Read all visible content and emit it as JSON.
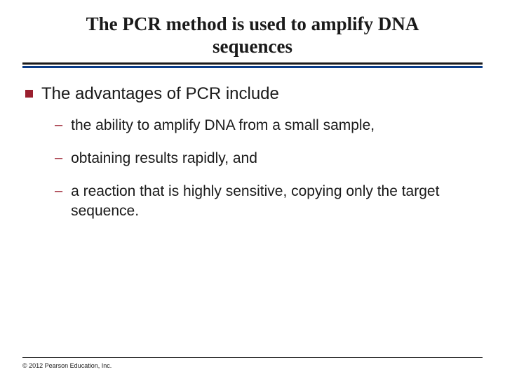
{
  "colors": {
    "text": "#1a1a1a",
    "accent_red": "#9a1f2e",
    "rule_blue": "#0a3c88",
    "background": "#ffffff"
  },
  "title": {
    "text": "The PCR method is used to amplify DNA sequences",
    "font_family": "Times New Roman",
    "font_weight": "bold",
    "font_size_pt": 20
  },
  "bullets": {
    "level1": [
      {
        "text": "The advantages of PCR include"
      }
    ],
    "level2": [
      {
        "text": "the ability to amplify DNA from a small sample,"
      },
      {
        "text": "obtaining results rapidly, and"
      },
      {
        "text": "a reaction that is highly sensitive, copying only the target sequence."
      }
    ],
    "l1_bullet_shape": "square",
    "l1_bullet_color": "#9a1f2e",
    "l1_font_size_pt": 18,
    "l2_bullet_glyph": "–",
    "l2_bullet_color": "#9a1f2e",
    "l2_font_size_pt": 16
  },
  "footer": {
    "copyright": "© 2012 Pearson Education, Inc."
  }
}
